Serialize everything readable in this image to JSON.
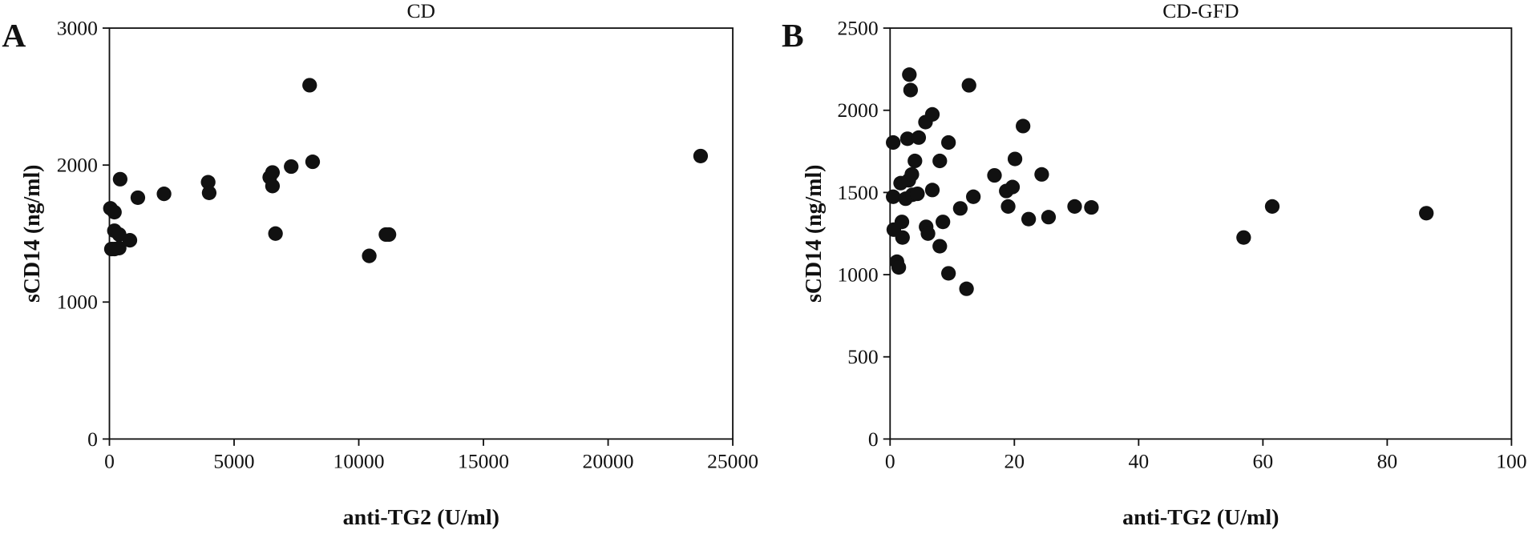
{
  "chart_data": [
    {
      "type": "scatter",
      "panel_label": "A",
      "title": "CD",
      "x_label": "anti-TG2 (U/ml)",
      "y_label": "sCD14 (ng/ml)",
      "color": "#111111",
      "x": [
        40,
        200,
        200,
        390,
        430,
        200,
        80,
        390,
        820,
        1140,
        2190,
        3960,
        4000,
        6430,
        6540,
        6540,
        6660,
        7290,
        8030,
        8150,
        10420,
        11090,
        11210,
        23710
      ],
      "values": [
        1684,
        1656,
        1521,
        1493,
        1897,
        1387,
        1387,
        1394,
        1451,
        1762,
        1790,
        1875,
        1797,
        1911,
        1946,
        1847,
        1500,
        1989,
        2583,
        2024,
        1337,
        1493,
        1493,
        2066
      ],
      "xlim": [
        0,
        25000
      ],
      "xticks": [
        0,
        5000,
        10000,
        15000,
        20000,
        25000
      ],
      "ylim": [
        0,
        3000
      ],
      "yticks": [
        0,
        1000,
        2000,
        3000
      ]
    },
    {
      "type": "scatter",
      "panel_label": "B",
      "title": "CD-GFD",
      "x_label": "anti-TG2 (U/ml)",
      "y_label": "sCD14 (ng/ml)",
      "color": "#111111",
      "x": [
        0.5,
        0.5,
        0.6,
        1.1,
        1.4,
        1.9,
        2.0,
        1.7,
        2.5,
        2.8,
        3.1,
        3.3,
        3.0,
        3.5,
        3.6,
        4.0,
        4.4,
        4.6,
        5.7,
        5.8,
        6.1,
        6.8,
        6.8,
        8.0,
        8.0,
        8.5,
        9.4,
        9.4,
        11.3,
        12.3,
        12.7,
        13.4,
        16.8,
        18.7,
        19.0,
        19.7,
        20.1,
        21.4,
        22.3,
        24.4,
        25.5,
        29.7,
        32.4,
        56.9,
        61.5,
        86.3
      ],
      "values": [
        1804,
        1474,
        1274,
        1079,
        1044,
        1321,
        1226,
        1557,
        1462,
        1827,
        2217,
        2123,
        1574,
        1610,
        1486,
        1692,
        1492,
        1834,
        1928,
        1291,
        1250,
        1975,
        1515,
        1692,
        1173,
        1321,
        1804,
        1008,
        1403,
        914,
        2152,
        1474,
        1604,
        1509,
        1415,
        1533,
        1704,
        1904,
        1338,
        1610,
        1350,
        1415,
        1409,
        1226,
        1415,
        1374
      ],
      "xlim": [
        0,
        100
      ],
      "xticks": [
        0,
        20,
        40,
        60,
        80,
        100
      ],
      "ylim": [
        0,
        2500
      ],
      "yticks": [
        0,
        500,
        1000,
        1500,
        2000,
        2500
      ]
    }
  ]
}
